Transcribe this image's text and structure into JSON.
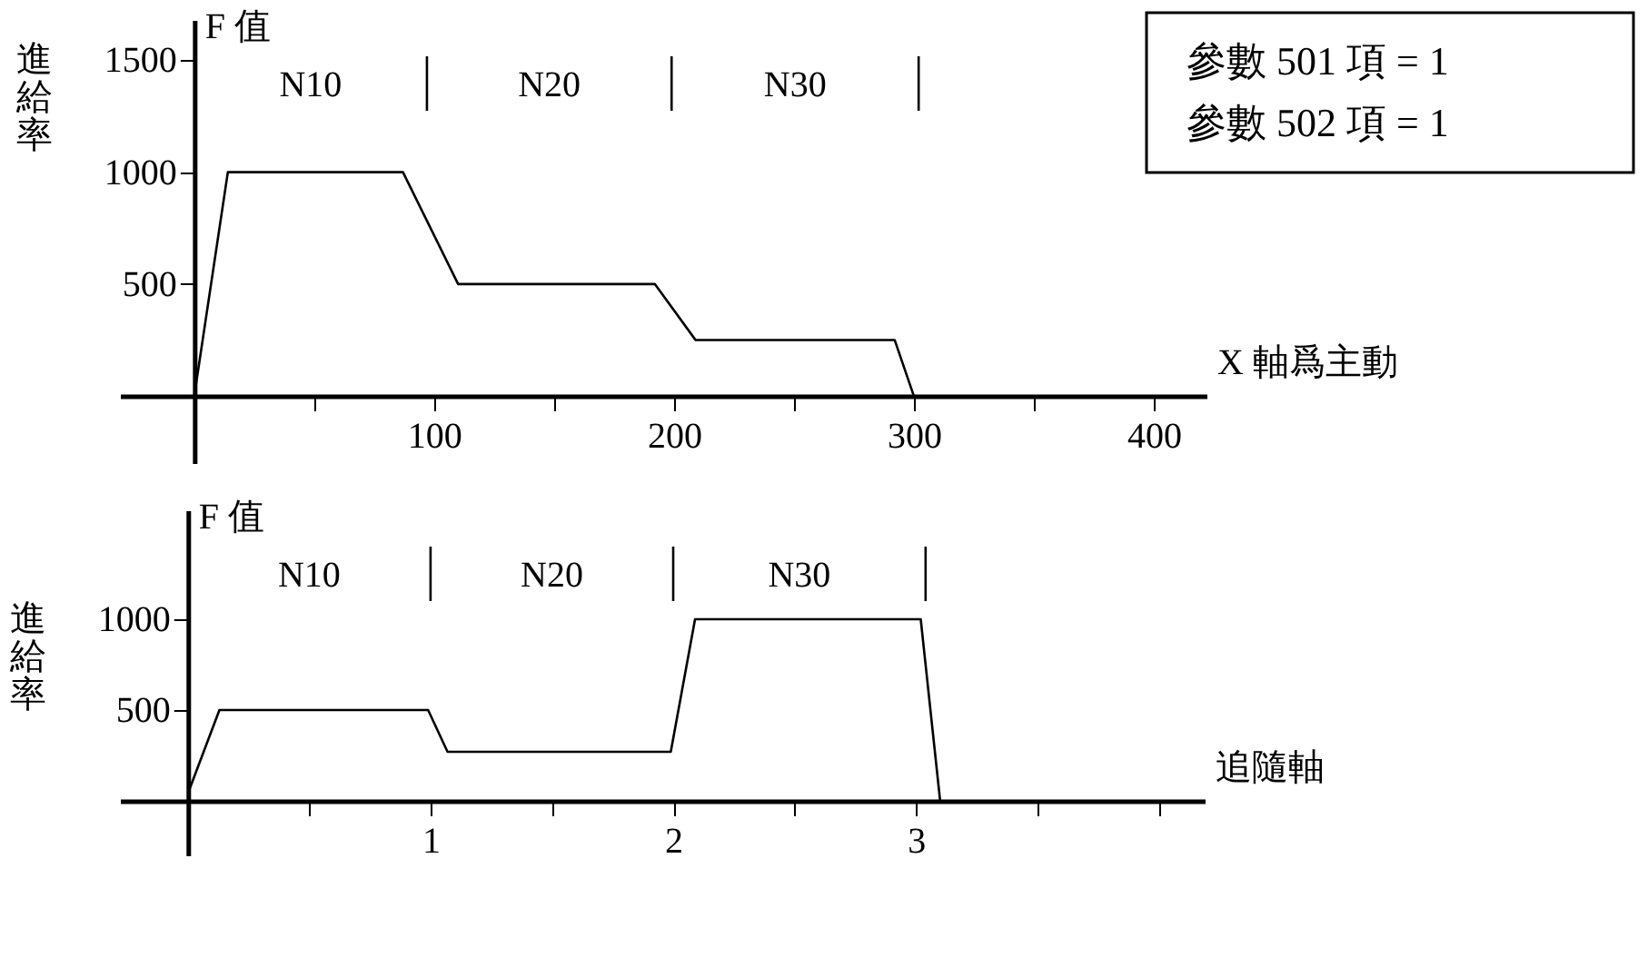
{
  "chart_data": [
    {
      "type": "line",
      "ylabel": "進給率",
      "xlabel": "X 軸爲主動",
      "color": "#000000",
      "marker": "none",
      "line_style": "solid",
      "grid": false,
      "x": [
        0,
        14,
        87,
        110,
        192,
        209,
        292,
        300
      ],
      "values": [
        0,
        1000,
        1000,
        500,
        500,
        250,
        250,
        0
      ],
      "xlim": [
        -31,
        422
      ],
      "ylim": [
        -300,
        1680
      ],
      "xticks": [
        {
          "value": 50,
          "label": null
        },
        100,
        {
          "value": 150,
          "label": null
        },
        200,
        {
          "value": 250,
          "label": null
        },
        300,
        {
          "value": 350,
          "label": null
        },
        400
      ],
      "yticks": [
        500,
        1000,
        1500
      ],
      "ref_lines": [
        {
          "axis": "x",
          "value": 97
        },
        {
          "axis": "x",
          "value": 199
        },
        {
          "axis": "x",
          "value": 302
        }
      ],
      "annotations": [
        "F 值",
        "N10",
        "N20",
        "N30",
        "參數 501 項 = 1",
        "參數 502 項 = 1"
      ]
    },
    {
      "type": "line",
      "ylabel": "進給率",
      "xlabel": "追隨軸",
      "color": "#000000",
      "marker": "none",
      "line_style": "solid",
      "grid": false,
      "x": [
        0,
        0.13,
        0.99,
        1.07,
        1.99,
        2.09,
        3.02,
        3.1
      ],
      "values": [
        40,
        500,
        500,
        270,
        270,
        1000,
        1000,
        0
      ],
      "xlim": [
        -0.28,
        4.19
      ],
      "ylim": [
        -300,
        1600
      ],
      "xticks": [
        {
          "value": 0.5,
          "label": null
        },
        1,
        {
          "value": 1.5,
          "label": null
        },
        2,
        {
          "value": 2.5,
          "label": null
        },
        3,
        {
          "value": 3.5,
          "label": null
        },
        {
          "value": 4,
          "label": null
        }
      ],
      "yticks": [
        500,
        1000
      ],
      "ref_lines": [
        {
          "axis": "x",
          "value": 1.0
        },
        {
          "axis": "x",
          "value": 2.0
        },
        {
          "axis": "x",
          "value": 3.04
        }
      ],
      "annotations": [
        "F 值",
        "N10",
        "N20",
        "N30"
      ]
    }
  ]
}
